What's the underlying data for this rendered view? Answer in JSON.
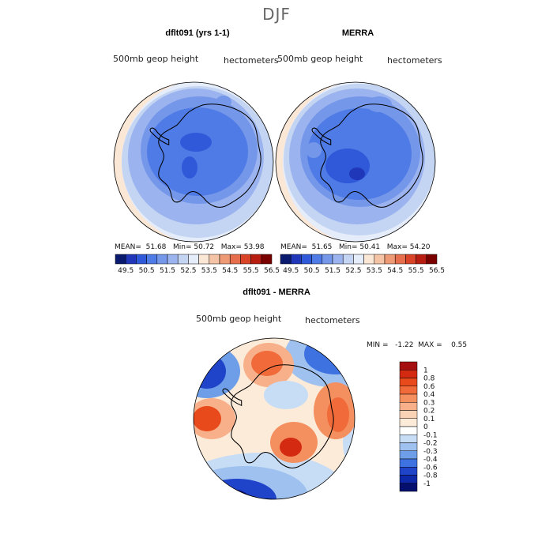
{
  "season": "DJF",
  "panels": [
    {
      "title": "dflt091 (yrs 1-1)",
      "variable": "500mb geop height",
      "units": "hectometers",
      "mean_label": "MEAN=",
      "mean": "51.68",
      "min_label": "Min=",
      "min": "50.72",
      "max_label": "Max=",
      "max": "53.98"
    },
    {
      "title": "MERRA",
      "variable": "500mb geop height",
      "units": "hectometers",
      "mean_label": "MEAN=",
      "mean": "51.65",
      "min_label": "Min=",
      "min": "50.41",
      "max_label": "Max=",
      "max": "54.20"
    },
    {
      "title": "dflt091 - MERRA",
      "variable": "500mb geop height",
      "units": "hectometers",
      "minmax_text": "MIN =   -1.22  MAX =    0.55"
    }
  ],
  "chart_data": [
    {
      "type": "heatmap",
      "title": "dflt091 (yrs 1-1)",
      "projection": "south polar stereographic",
      "field": "500mb geop height (hectometers)",
      "mean": 51.68,
      "min": 50.72,
      "max": 53.98,
      "colorbar_ticks": [
        "49.5",
        "50.5",
        "51.5",
        "52.5",
        "53.5",
        "54.5",
        "55.5",
        "56.5"
      ],
      "colorbar_colors": [
        "#0a1a6e",
        "#1f37b8",
        "#2f59d9",
        "#4f7be6",
        "#7597ea",
        "#9bb3ee",
        "#c4d5f3",
        "#e6edfa",
        "#fbe7d6",
        "#f5c4a6",
        "#ef9a76",
        "#e66e4c",
        "#d94428",
        "#b81d12",
        "#7a0000"
      ]
    },
    {
      "type": "heatmap",
      "title": "MERRA",
      "projection": "south polar stereographic",
      "field": "500mb geop height (hectometers)",
      "mean": 51.65,
      "min": 50.41,
      "max": 54.2,
      "colorbar_ticks": [
        "49.5",
        "50.5",
        "51.5",
        "52.5",
        "53.5",
        "54.5",
        "55.5",
        "56.5"
      ],
      "colorbar_colors": [
        "#0a1a6e",
        "#1f37b8",
        "#2f59d9",
        "#4f7be6",
        "#7597ea",
        "#9bb3ee",
        "#c4d5f3",
        "#e6edfa",
        "#fbe7d6",
        "#f5c4a6",
        "#ef9a76",
        "#e66e4c",
        "#d94428",
        "#b81d12",
        "#7a0000"
      ]
    },
    {
      "type": "heatmap",
      "title": "dflt091 - MERRA",
      "projection": "south polar stereographic",
      "field": "500mb geop height difference (hectometers)",
      "min": -1.22,
      "max": 0.55,
      "colorbar_ticks": [
        "1",
        "0.8",
        "0.6",
        "0.4",
        "0.3",
        "0.2",
        "0.1",
        "0",
        "-0.1",
        "-0.2",
        "-0.3",
        "-0.4",
        "-0.6",
        "-0.8",
        "-1"
      ],
      "colorbar_colors": [
        "#a50f0f",
        "#d42a12",
        "#e84a1c",
        "#f06a3a",
        "#f4905f",
        "#f7b08a",
        "#fad2b6",
        "#fdebd9",
        "#ffffff",
        "#c7dcf5",
        "#9ec1ef",
        "#6f9ee8",
        "#3d72e0",
        "#1f44c9",
        "#0d28a8",
        "#050f6e"
      ]
    }
  ]
}
